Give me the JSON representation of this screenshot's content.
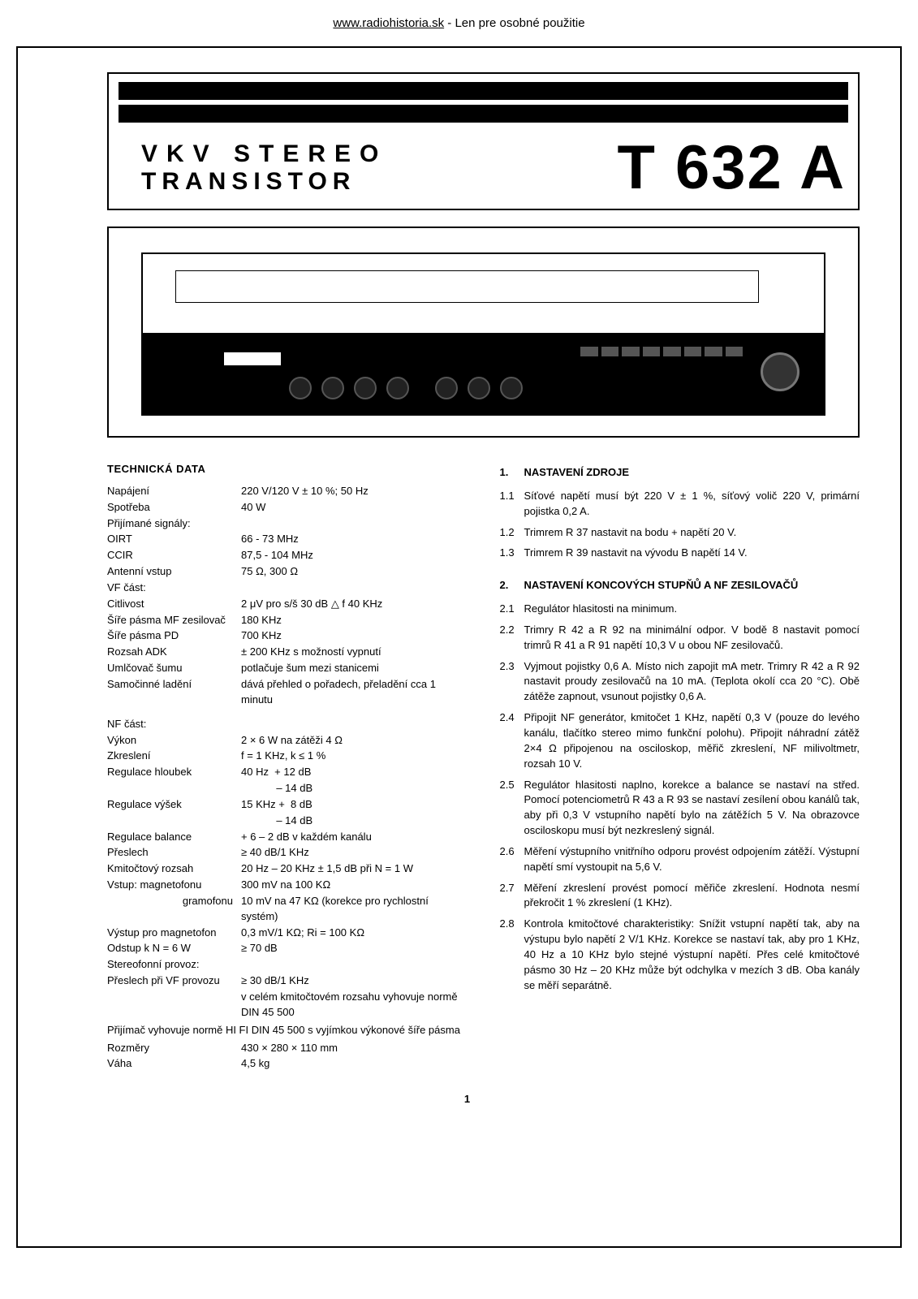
{
  "header": {
    "url": "www.radiohistoria.sk",
    "suffix": " - Len pre osobné použitie"
  },
  "title": {
    "line1": "VKV STEREO",
    "line2": "TRANSISTOR",
    "model": "T 632 A"
  },
  "leftTitle": "TECHNICKÁ DATA",
  "specs": [
    {
      "label": "Napájení",
      "val": "220 V/120 V ± 10 %; 50 Hz"
    },
    {
      "label": "Spotřeba",
      "val": "40 W"
    },
    {
      "label": "Přijímané signály:",
      "val": ""
    },
    {
      "label": "OIRT",
      "val": "66 - 73 MHz"
    },
    {
      "label": "CCIR",
      "val": "87,5 - 104 MHz"
    },
    {
      "label": "Antenní vstup",
      "val": "75 Ω, 300 Ω"
    },
    {
      "label": "VF část:",
      "val": ""
    },
    {
      "label": "Citlivost",
      "val": "2 μV pro s/š 30 dB △ f 40 KHz"
    },
    {
      "label": "Šíře pásma MF zesilovač",
      "val": "180 KHz"
    },
    {
      "label": "Šíře pásma PD",
      "val": "700 KHz"
    },
    {
      "label": "Rozsah ADK",
      "val": "± 200 KHz s možností vypnutí"
    },
    {
      "label": "Umlčovač šumu",
      "val": "potlačuje šum mezi stanicemi"
    },
    {
      "label": "Samočinné ladění",
      "val": "dává přehled o pořadech, přeladění cca 1 minutu"
    }
  ],
  "nfTitle": "NF část:",
  "nf": [
    {
      "label": "Výkon",
      "val": "2 × 6 W na zátěži 4 Ω"
    },
    {
      "label": "Zkreslení",
      "val": "f = 1 KHz, k ≤ 1 %"
    },
    {
      "label": "Regulace hloubek",
      "val": "40 Hz  + 12 dB"
    },
    {
      "label": "",
      "val": "            – 14 dB"
    },
    {
      "label": "Regulace výšek",
      "val": "15 KHz +  8 dB"
    },
    {
      "label": "",
      "val": "            – 14 dB"
    },
    {
      "label": "Regulace balance",
      "val": "+ 6 – 2 dB v každém kanálu"
    },
    {
      "label": "Přeslech",
      "val": "≥ 40 dB/1 KHz"
    },
    {
      "label": "Kmitočtový rozsah",
      "val": "20 Hz – 20 KHz ± 1,5 dB při N = 1 W"
    },
    {
      "label": "Vstup: magnetofonu",
      "val": "300 mV na 100 KΩ"
    },
    {
      "label": "gramofonu",
      "val": "10 mV na 47 KΩ (korekce pro rychlostní systém)"
    },
    {
      "label": "Výstup pro magnetofon",
      "val": "0,3 mV/1 KΩ; Ri = 100 KΩ"
    },
    {
      "label": "Odstup k N = 6 W",
      "val": "≥ 70 dB"
    },
    {
      "label": "Stereofonní provoz:",
      "val": ""
    },
    {
      "label": "Přeslech při VF provozu",
      "val": "≥ 30 dB/1 KHz"
    },
    {
      "label": "",
      "val": "v celém kmitočtovém rozsahu vyhovuje normě DIN 45 500"
    }
  ],
  "note": "Přijímač vyhovuje normě HI FI DIN 45 500 s vyjímkou výkonové šíře pásma",
  "dims": [
    {
      "label": "Rozměry",
      "val": "430 × 280 × 110 mm"
    },
    {
      "label": "Váha",
      "val": "4,5 kg"
    }
  ],
  "sec1": {
    "num": "1.",
    "title": "NASTAVENÍ ZDROJE",
    "items": [
      {
        "n": "1.1",
        "t": "Síťové napětí musí být 220 V ± 1 %, síťový volič 220 V, primární pojistka 0,2 A."
      },
      {
        "n": "1.2",
        "t": "Trimrem R 37 nastavit na bodu + napětí 20 V."
      },
      {
        "n": "1.3",
        "t": "Trimrem R 39 nastavit na vývodu B napětí 14 V."
      }
    ]
  },
  "sec2": {
    "num": "2.",
    "title": "NASTAVENÍ KONCOVÝCH STUPŇŮ A NF ZESILOVAČŮ",
    "items": [
      {
        "n": "2.1",
        "t": "Regulátor hlasitosti na minimum."
      },
      {
        "n": "2.2",
        "t": "Trimry R 42 a R 92 na minimální odpor. V bodě 8 nastavit pomocí trimrů R 41 a R 91 napětí 10,3 V u obou NF zesilovačů."
      },
      {
        "n": "2.3",
        "t": "Vyjmout pojistky 0,6 A. Místo nich zapojit mA metr. Trimry R 42 a R 92 nastavit proudy zesilovačů na 10 mA. (Teplota okolí cca 20 °C). Obě zátěže zapnout, vsunout pojistky 0,6 A."
      },
      {
        "n": "2.4",
        "t": "Připojit NF generátor, kmitočet 1 KHz, napětí 0,3 V (pouze do levého kanálu, tlačítko stereo mimo funkční polohu). Připojit náhradní zátěž 2×4 Ω připojenou na osciloskop, měřič zkreslení, NF milivoltmetr, rozsah 10 V."
      },
      {
        "n": "2.5",
        "t": "Regulátor hlasitosti naplno, korekce a balance se nastaví na střed. Pomocí potenciometrů R 43 a R 93 se nastaví zesílení obou kanálů tak, aby při 0,3 V vstupního napětí bylo na zátěžích 5 V. Na obrazovce osciloskopu musí být nezkreslený signál."
      },
      {
        "n": "2.6",
        "t": "Měření výstupního vnitřního odporu provést odpojením zátěží. Výstupní napětí smí vystoupit na 5,6 V."
      },
      {
        "n": "2.7",
        "t": "Měření zkreslení provést pomocí měřiče zkreslení. Hodnota nesmí překročit 1 % zkreslení (1 KHz)."
      },
      {
        "n": "2.8",
        "t": "Kontrola kmitočtové charakteristiky: Snížit vstupní napětí tak, aby na výstupu bylo napětí 2 V/1 KHz. Korekce se nastaví tak, aby pro 1 KHz, 40 Hz a 10 KHz bylo stejné výstupní napětí. Přes celé kmitočtové pásmo 30 Hz – 20 KHz může být odchylka v mezích 3 dB. Oba kanály se měří separátně."
      }
    ]
  },
  "pageNumber": "1"
}
